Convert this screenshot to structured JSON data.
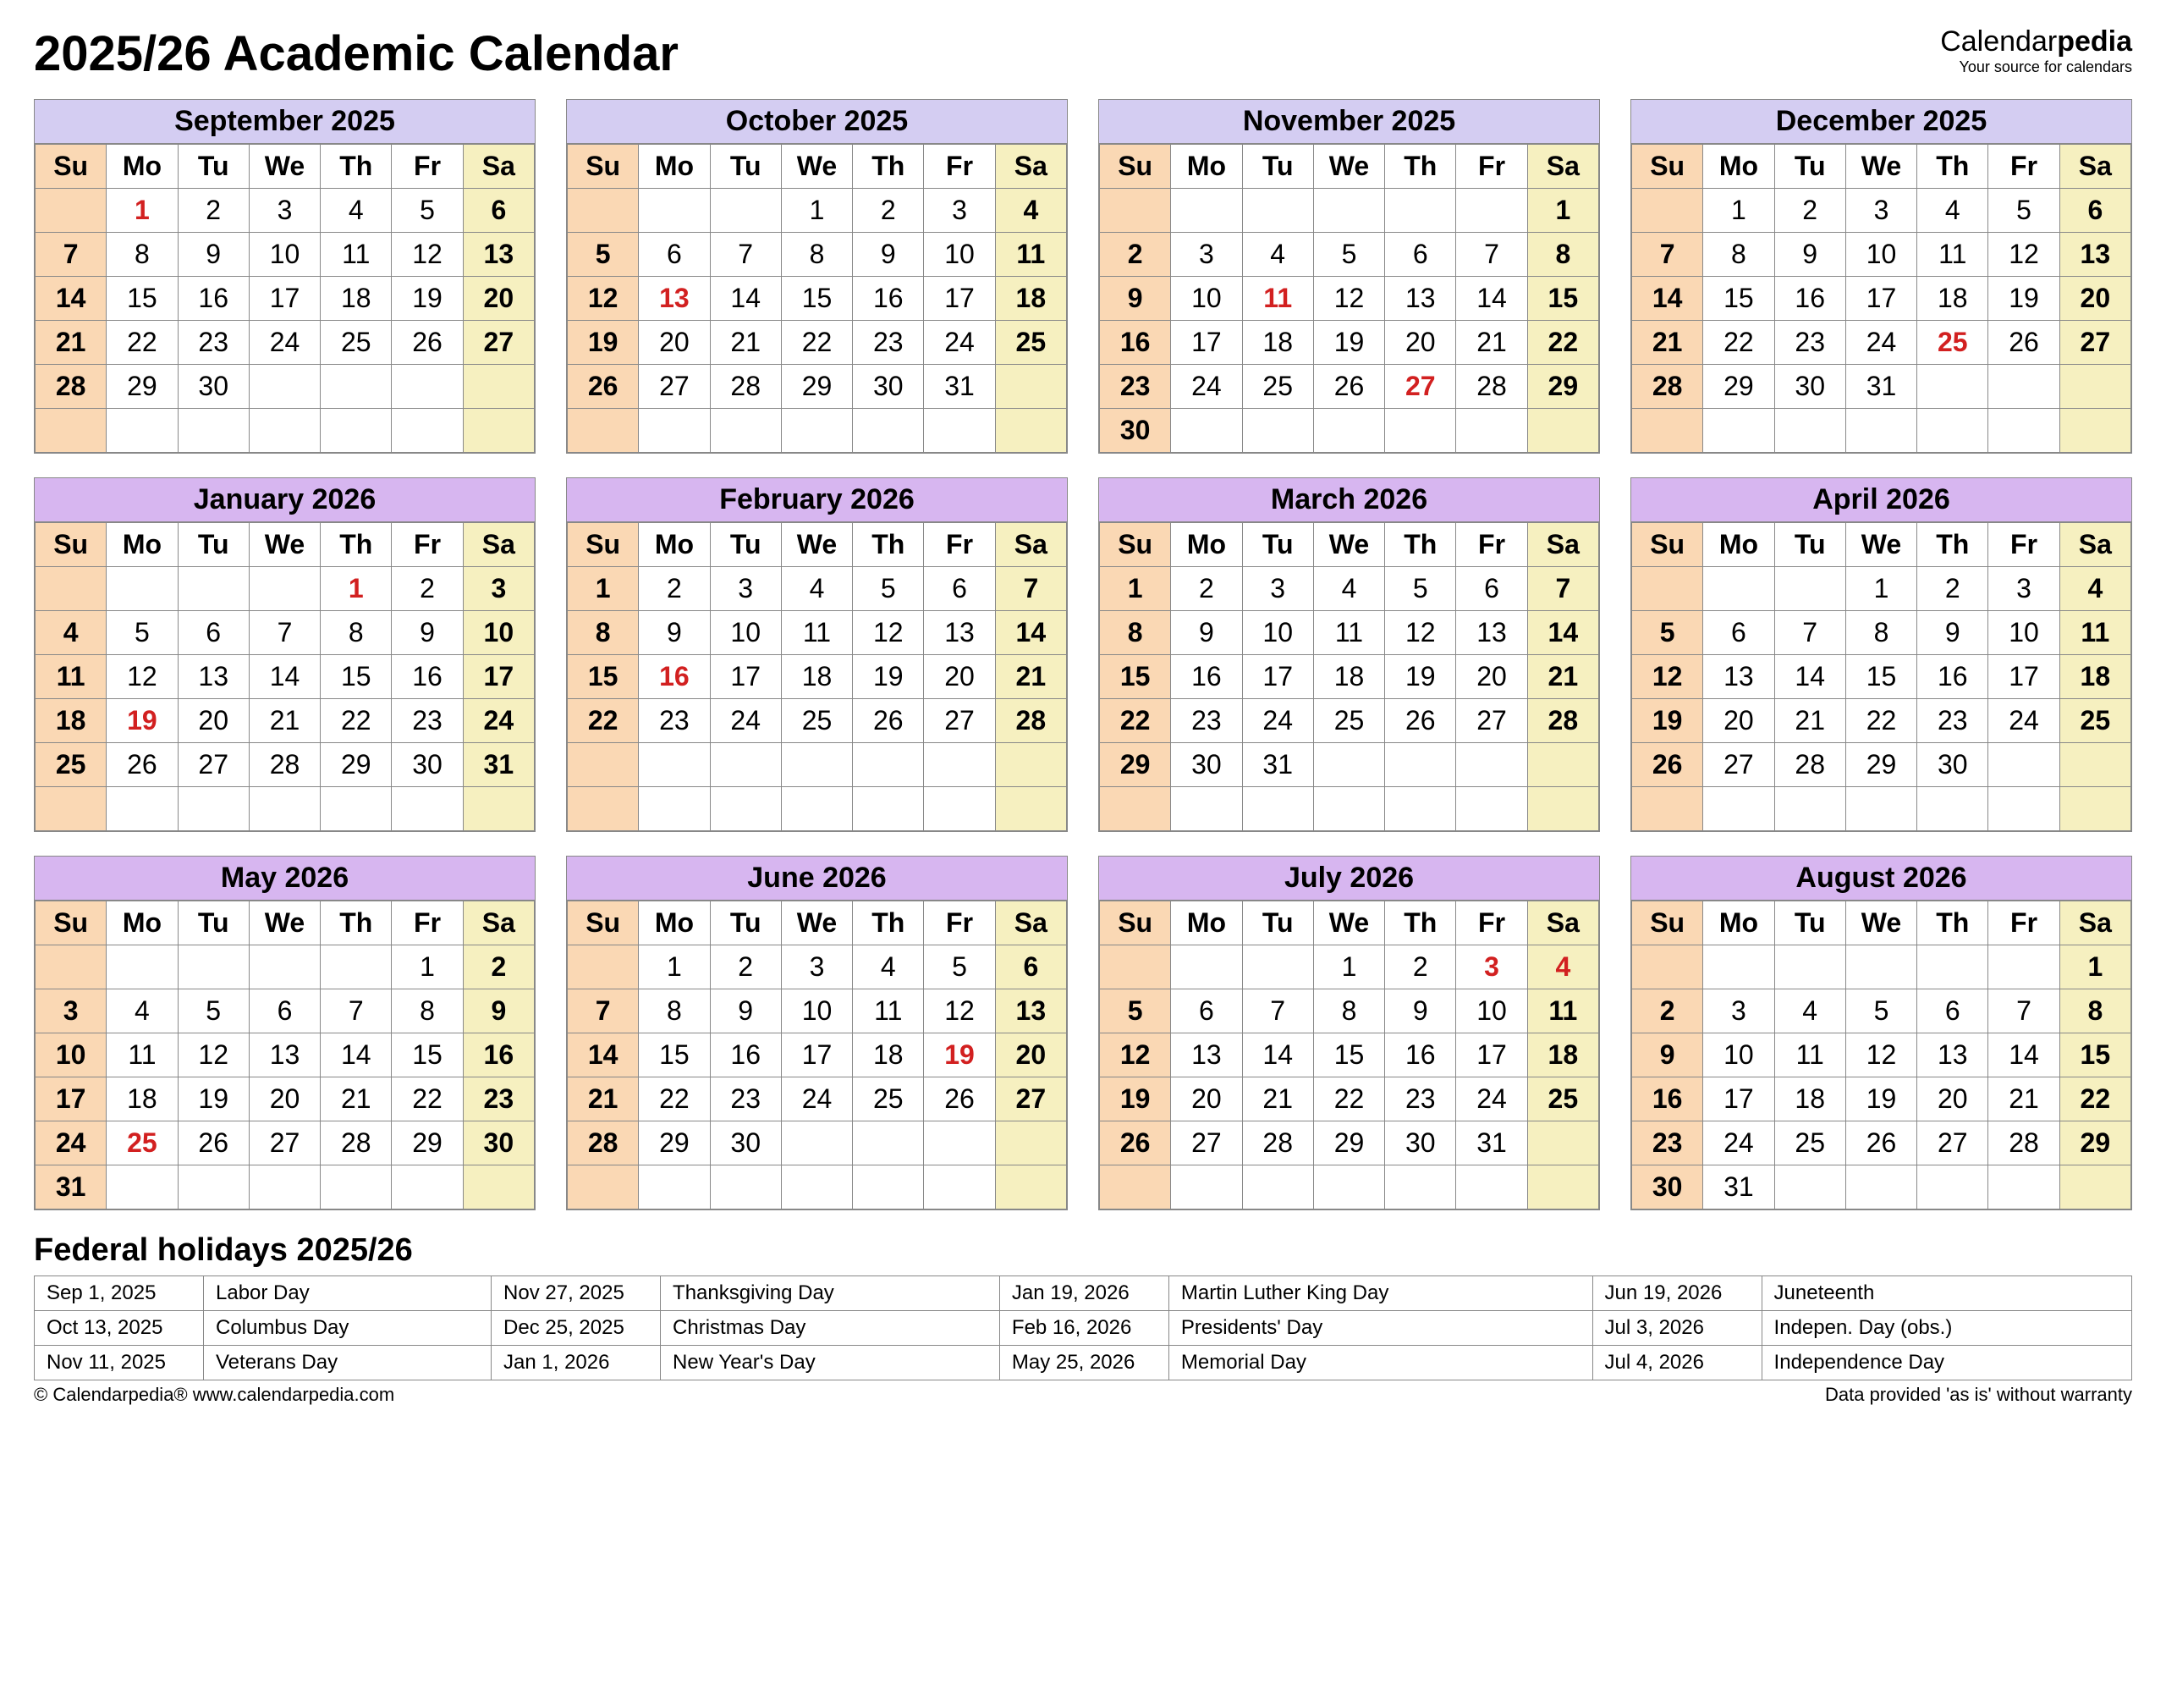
{
  "title": "2025/26 Academic Calendar",
  "brand": {
    "left": "Calendar",
    "right": "pedia",
    "tag": "Your source for calendars"
  },
  "colors": {
    "header_row1": "#d4cdf2",
    "header_row2": "#d7b6f0",
    "sunday_bg": "#fad8b4",
    "saturday_bg": "#f6f0c0",
    "holiday_text": "#d22020",
    "border": "#888888"
  },
  "dows": [
    "Su",
    "Mo",
    "Tu",
    "We",
    "Th",
    "Fr",
    "Sa"
  ],
  "months": [
    {
      "name": "September 2025",
      "row": 0,
      "start": 1,
      "days": 30,
      "holidays": [
        1
      ]
    },
    {
      "name": "October 2025",
      "row": 0,
      "start": 3,
      "days": 31,
      "holidays": [
        13
      ]
    },
    {
      "name": "November 2025",
      "row": 0,
      "start": 6,
      "days": 30,
      "holidays": [
        11,
        27
      ]
    },
    {
      "name": "December 2025",
      "row": 0,
      "start": 1,
      "days": 31,
      "holidays": [
        25
      ]
    },
    {
      "name": "January 2026",
      "row": 1,
      "start": 4,
      "days": 31,
      "holidays": [
        1,
        19
      ]
    },
    {
      "name": "February 2026",
      "row": 1,
      "start": 0,
      "days": 28,
      "holidays": [
        16
      ]
    },
    {
      "name": "March 2026",
      "row": 1,
      "start": 0,
      "days": 31,
      "holidays": []
    },
    {
      "name": "April 2026",
      "row": 1,
      "start": 3,
      "days": 30,
      "holidays": []
    },
    {
      "name": "May 2026",
      "row": 2,
      "start": 5,
      "days": 31,
      "holidays": [
        25
      ]
    },
    {
      "name": "June 2026",
      "row": 2,
      "start": 1,
      "days": 30,
      "holidays": [
        19
      ]
    },
    {
      "name": "July 2026",
      "row": 2,
      "start": 3,
      "days": 31,
      "holidays": [
        3,
        4
      ]
    },
    {
      "name": "August 2026",
      "row": 2,
      "start": 6,
      "days": 31,
      "holidays": []
    }
  ],
  "holidays_title": "Federal holidays 2025/26",
  "holidays_table": [
    [
      {
        "d": "Sep 1, 2025",
        "n": "Labor Day"
      },
      {
        "d": "Nov 27, 2025",
        "n": "Thanksgiving Day"
      },
      {
        "d": "Jan 19, 2026",
        "n": "Martin Luther King Day"
      },
      {
        "d": "Jun 19, 2026",
        "n": "Juneteenth"
      }
    ],
    [
      {
        "d": "Oct 13, 2025",
        "n": "Columbus Day"
      },
      {
        "d": "Dec 25, 2025",
        "n": "Christmas Day"
      },
      {
        "d": "Feb 16, 2026",
        "n": "Presidents' Day"
      },
      {
        "d": "Jul 3, 2026",
        "n": "Indepen. Day (obs.)"
      }
    ],
    [
      {
        "d": "Nov 11, 2025",
        "n": "Veterans Day"
      },
      {
        "d": "Jan 1, 2026",
        "n": "New Year's Day"
      },
      {
        "d": "May 25, 2026",
        "n": "Memorial Day"
      },
      {
        "d": "Jul 4, 2026",
        "n": "Independence Day"
      }
    ]
  ],
  "footer_left": "© Calendarpedia®   www.calendarpedia.com",
  "footer_right": "Data provided 'as is' without warranty"
}
